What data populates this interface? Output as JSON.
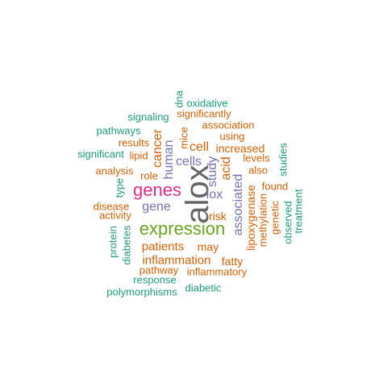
{
  "colors": {
    "green": "#1b9e77",
    "orange": "#d95f02",
    "purple": "#7570b3",
    "magenta": "#e7298a",
    "lime": "#66a61e",
    "gray": "#666666"
  },
  "words": [
    {
      "text": "alox",
      "color": "gray",
      "vertical": true
    },
    {
      "text": "expression",
      "color": "lime",
      "vertical": false
    },
    {
      "text": "genes",
      "color": "magenta",
      "vertical": false
    },
    {
      "text": "cells",
      "color": "purple",
      "vertical": false
    },
    {
      "text": "human",
      "color": "purple",
      "vertical": true
    },
    {
      "text": "study",
      "color": "purple",
      "vertical": true
    },
    {
      "text": "lox",
      "color": "purple",
      "vertical": false
    },
    {
      "text": "gene",
      "color": "purple",
      "vertical": false
    },
    {
      "text": "associated",
      "color": "purple",
      "vertical": true
    },
    {
      "text": "cell",
      "color": "orange",
      "vertical": false
    },
    {
      "text": "cancer",
      "color": "orange",
      "vertical": true
    },
    {
      "text": "acid",
      "color": "orange",
      "vertical": true
    },
    {
      "text": "patients",
      "color": "orange",
      "vertical": false
    },
    {
      "text": "inflammation",
      "color": "orange",
      "vertical": false
    },
    {
      "text": "may",
      "color": "orange",
      "vertical": false
    },
    {
      "text": "increased",
      "color": "orange",
      "vertical": false
    },
    {
      "text": "lipoxygenase",
      "color": "orange",
      "vertical": true
    },
    {
      "text": "fatty",
      "color": "orange",
      "vertical": false
    },
    {
      "text": "risk",
      "color": "orange",
      "vertical": false
    },
    {
      "text": "association",
      "color": "orange",
      "vertical": false
    },
    {
      "text": "using",
      "color": "orange",
      "vertical": false
    },
    {
      "text": "levels",
      "color": "orange",
      "vertical": false
    },
    {
      "text": "also",
      "color": "orange",
      "vertical": false
    },
    {
      "text": "found",
      "color": "orange",
      "vertical": false
    },
    {
      "text": "methylation",
      "color": "orange",
      "vertical": true
    },
    {
      "text": "genetic",
      "color": "orange",
      "vertical": true
    },
    {
      "text": "inflammatory",
      "color": "orange",
      "vertical": false
    },
    {
      "text": "pathway",
      "color": "orange",
      "vertical": false
    },
    {
      "text": "role",
      "color": "orange",
      "vertical": false
    },
    {
      "text": "analysis",
      "color": "orange",
      "vertical": false
    },
    {
      "text": "lipid",
      "color": "orange",
      "vertical": false
    },
    {
      "text": "results",
      "color": "orange",
      "vertical": false
    },
    {
      "text": "disease",
      "color": "orange",
      "vertical": false
    },
    {
      "text": "activity",
      "color": "orange",
      "vertical": false
    },
    {
      "text": "mice",
      "color": "orange",
      "vertical": true
    },
    {
      "text": "significantly",
      "color": "orange",
      "vertical": false
    },
    {
      "text": "oxidative",
      "color": "green",
      "vertical": false
    },
    {
      "text": "dna",
      "color": "green",
      "vertical": true
    },
    {
      "text": "signaling",
      "color": "green",
      "vertical": false
    },
    {
      "text": "pathways",
      "color": "green",
      "vertical": false
    },
    {
      "text": "significant",
      "color": "green",
      "vertical": false
    },
    {
      "text": "type",
      "color": "green",
      "vertical": true
    },
    {
      "text": "protein",
      "color": "green",
      "vertical": true
    },
    {
      "text": "diabetes",
      "color": "green",
      "vertical": true
    },
    {
      "text": "response",
      "color": "green",
      "vertical": false
    },
    {
      "text": "polymorphisms",
      "color": "green",
      "vertical": false
    },
    {
      "text": "diabetic",
      "color": "green",
      "vertical": false
    },
    {
      "text": "studies",
      "color": "green",
      "vertical": true
    },
    {
      "text": "observed",
      "color": "green",
      "vertical": true
    },
    {
      "text": "treatment",
      "color": "green",
      "vertical": true
    }
  ]
}
